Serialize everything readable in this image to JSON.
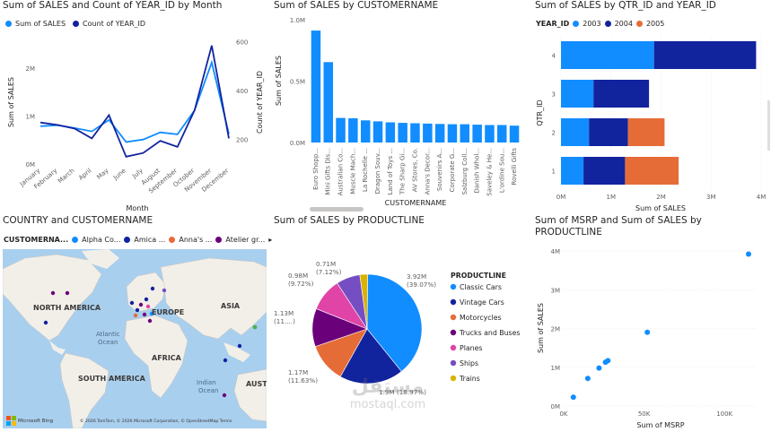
{
  "colors": {
    "light_blue": "#118DFF",
    "dark_blue": "#12239E",
    "orange": "#E66C37",
    "purple": "#6B007B",
    "pink": "#E044A7",
    "violet": "#744EC2",
    "yellow": "#D9B300",
    "land": "#f2efe9",
    "water": "#a9cfee"
  },
  "chart_data": [
    {
      "type": "line",
      "title": "Sum of SALES and Count of YEAR_ID by Month",
      "xlabel": "Month",
      "ylabel": "Sum of SALES",
      "y2label": "Count of YEAR_ID",
      "categories": [
        "January",
        "February",
        "March",
        "April",
        "May",
        "June",
        "July",
        "August",
        "September",
        "October",
        "November",
        "December"
      ],
      "y_ticks": [
        "0M",
        "1M",
        "2M"
      ],
      "y2_ticks": [
        "200",
        "400",
        "600"
      ],
      "ylim": [
        0,
        2600000
      ],
      "y2lim": [
        100,
        610
      ],
      "series": [
        {
          "name": "Sum of SALES",
          "axis": "left",
          "values": [
            790000,
            810000,
            750000,
            680000,
            920000,
            460000,
            510000,
            660000,
            620000,
            1120000,
            2120000,
            630000
          ]
        },
        {
          "name": "Count of YEAR_ID",
          "axis": "right",
          "values": [
            270,
            260,
            245,
            205,
            300,
            130,
            145,
            195,
            170,
            320,
            585,
            205
          ]
        }
      ]
    },
    {
      "type": "bar",
      "title": "Sum of SALES by CUSTOMERNAME",
      "xlabel": "CUSTOMERNAME",
      "ylabel": "Sum of SALES",
      "y_ticks": [
        "0.0M",
        "0.5M",
        "1.0M"
      ],
      "ylim": [
        0,
        1000000
      ],
      "categories": [
        "Euro Shopp...",
        "Mini Gifts Dis...",
        "Australian Co...",
        "Muscle Mach...",
        "La Rochelle ...",
        "Dragon Souv...",
        "Land of Toys ...",
        "The Sharp Gi...",
        "AV Stores, Co.",
        "Anna's Decor...",
        "Souvenirs A...",
        "Corporate G...",
        "Salzburg Coll...",
        "Danish Whol...",
        "Saveley & He...",
        "L'ordine Sou...",
        "Rovelli Gifts"
      ],
      "values": [
        912000,
        655000,
        200000,
        197000,
        180000,
        172000,
        164000,
        160000,
        157000,
        154000,
        151000,
        149000,
        149000,
        145000,
        142000,
        142000,
        137000
      ]
    },
    {
      "type": "bar",
      "orientation": "horizontal-stacked",
      "title": "Sum of SALES by QTR_ID and YEAR_ID",
      "legend_title": "YEAR_ID",
      "xlabel": "Sum of SALES",
      "ylabel": "QTR_ID",
      "x_ticks": [
        "0M",
        "1M",
        "2M",
        "3M",
        "4M"
      ],
      "xlim": [
        0,
        4000000
      ],
      "categories": [
        "4",
        "3",
        "2",
        "1"
      ],
      "series": [
        {
          "name": "2003",
          "values": [
            1860000,
            650000,
            560000,
            450000
          ]
        },
        {
          "name": "2004",
          "values": [
            2040000,
            1110000,
            780000,
            830000
          ]
        },
        {
          "name": "2005",
          "values": [
            0,
            0,
            730000,
            1070000
          ]
        }
      ]
    },
    {
      "type": "pie",
      "title": "Sum of SALES by PRODUCTLINE",
      "legend_title": "PRODUCTLINE",
      "categories": [
        "Classic Cars",
        "Vintage Cars",
        "Motorcycles",
        "Trucks and Buses",
        "Planes",
        "Ships",
        "Trains"
      ],
      "values": [
        3.92,
        1.9,
        1.17,
        1.13,
        0.98,
        0.71,
        0.23
      ],
      "labels": [
        {
          "value": "3.92M",
          "pct": "(39.07%)"
        },
        {
          "value": "1.9M (18.97%)",
          "pct": ""
        },
        {
          "value": "1.17M",
          "pct": "(11.63%)"
        },
        {
          "value": "1.13M",
          "pct": "(11....)"
        },
        {
          "value": "0.98M",
          "pct": "(9.72%)"
        },
        {
          "value": "0.71M",
          "pct": "(7.12%)"
        }
      ]
    },
    {
      "type": "scatter",
      "title": "Sum of MSRP and Sum of SALES by PRODUCTLINE",
      "xlabel": "Sum of MSRP",
      "ylabel": "Sum of SALES",
      "x_ticks": [
        "0K",
        "50K",
        "100K"
      ],
      "y_ticks": [
        "0M",
        "1M",
        "2M",
        "3M",
        "4M"
      ],
      "xlim": [
        0,
        120000
      ],
      "ylim": [
        0,
        4000000
      ],
      "points": [
        {
          "x": 6000,
          "y": 230000
        },
        {
          "x": 15000,
          "y": 710000
        },
        {
          "x": 22000,
          "y": 980000
        },
        {
          "x": 26000,
          "y": 1130000
        },
        {
          "x": 27500,
          "y": 1170000
        },
        {
          "x": 52000,
          "y": 1900000
        },
        {
          "x": 115000,
          "y": 3920000
        }
      ]
    }
  ],
  "map_panel": {
    "title": "COUNTRY and CUSTOMERNAME",
    "legend_title": "CUSTOMERNA...",
    "legend_items": [
      "Alpha Co...",
      "Amica ...",
      "Anna's ...",
      "Atelier gr..."
    ],
    "legend_more": "▸",
    "labels": {
      "north_america": "NORTH AMERICA",
      "europe": "EUROPE",
      "asia": "ASIA",
      "africa": "AFRICA",
      "south_america": "SOUTH AMERICA",
      "atlantic": "Atlantic",
      "ocean": "Ocean",
      "indian": "Indian",
      "indian_ocean": "Ocean",
      "austr": "AUSTR"
    },
    "footer_logo": "Microsoft Bing",
    "footer_copy": "© 2026 TomTom, © 2026 Microsoft Corporation, © OpenStreetMap Terms"
  },
  "watermark": {
    "arabic": "مستقل",
    "latin": "mostaql.com"
  }
}
